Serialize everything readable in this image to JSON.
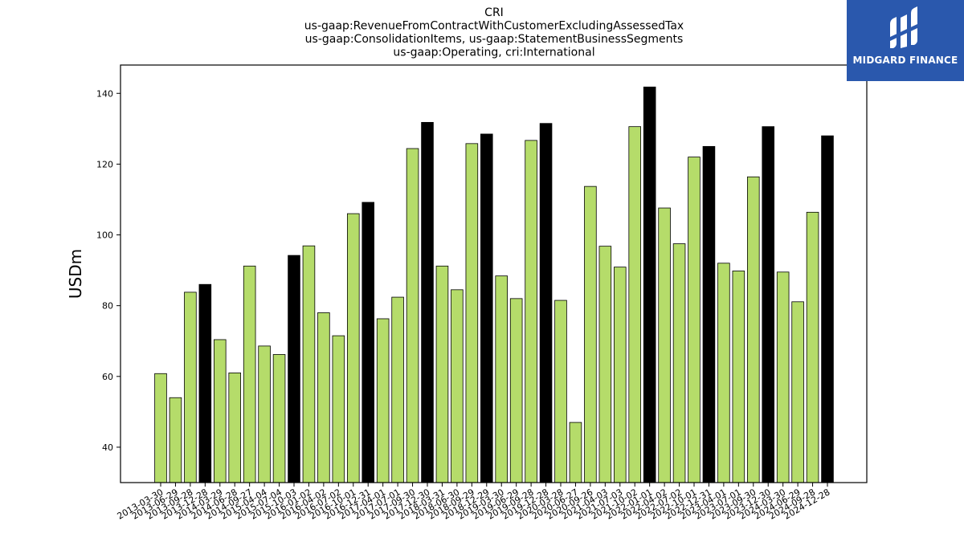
{
  "chart_data": {
    "type": "bar",
    "title_lines": [
      "CRI",
      "us-gaap:RevenueFromContractWithCustomerExcludingAssessedTax",
      "us-gaap:ConsolidationItems, us-gaap:StatementBusinessSegments",
      "us-gaap:Operating, cri:International"
    ],
    "xlabel": "",
    "ylabel": "USDm",
    "ylim": [
      30,
      148
    ],
    "yticks": [
      40,
      60,
      80,
      100,
      120,
      140
    ],
    "grid": false,
    "categories": [
      "2013-03-30",
      "2013-06-29",
      "2013-09-28",
      "2013-12-28",
      "2014-03-29",
      "2014-06-28",
      "2014-09-27",
      "2015-04-04",
      "2015-07-04",
      "2015-10-03",
      "2016-01-02",
      "2016-04-02",
      "2016-07-02",
      "2016-10-01",
      "2016-12-31",
      "2017-04-01",
      "2017-07-01",
      "2017-09-30",
      "2017-12-30",
      "2018-03-31",
      "2018-06-30",
      "2018-09-29",
      "2018-12-29",
      "2019-03-30",
      "2019-06-29",
      "2019-09-28",
      "2019-12-28",
      "2020-03-28",
      "2020-06-27",
      "2020-09-26",
      "2021-04-03",
      "2021-07-03",
      "2021-10-02",
      "2022-01-01",
      "2022-04-02",
      "2022-07-02",
      "2022-10-01",
      "2022-12-31",
      "2023-04-01",
      "2023-07-01",
      "2023-09-30",
      "2023-12-30",
      "2024-03-30",
      "2024-06-29",
      "2024-09-28",
      "2024-12-28"
    ],
    "values": [
      60.8,
      54.0,
      83.8,
      86.0,
      70.4,
      61.0,
      91.2,
      68.6,
      66.2,
      94.2,
      96.9,
      78.0,
      71.5,
      106.0,
      109.2,
      76.3,
      82.4,
      124.4,
      131.8,
      91.2,
      84.5,
      125.8,
      128.5,
      88.4,
      82.0,
      126.7,
      131.5,
      81.5,
      47.0,
      113.7,
      96.8,
      90.9,
      130.6,
      141.8,
      107.6,
      97.5,
      122.0,
      125.0,
      92.0,
      89.8,
      116.4,
      130.6,
      89.5,
      81.1,
      106.4,
      128.0
    ],
    "highlight": [
      false,
      false,
      false,
      true,
      false,
      false,
      false,
      false,
      false,
      true,
      false,
      false,
      false,
      false,
      true,
      false,
      false,
      false,
      true,
      false,
      false,
      false,
      true,
      false,
      false,
      false,
      true,
      false,
      false,
      false,
      false,
      false,
      false,
      true,
      false,
      false,
      false,
      true,
      false,
      false,
      false,
      true,
      false,
      false,
      false,
      true
    ],
    "colors": {
      "bar": "#b5dc6a",
      "highlight": "#000000",
      "edge": "#000000"
    }
  },
  "logo": {
    "text": "MIDGARD FINANCE",
    "bg_color": "#2a58ad"
  }
}
